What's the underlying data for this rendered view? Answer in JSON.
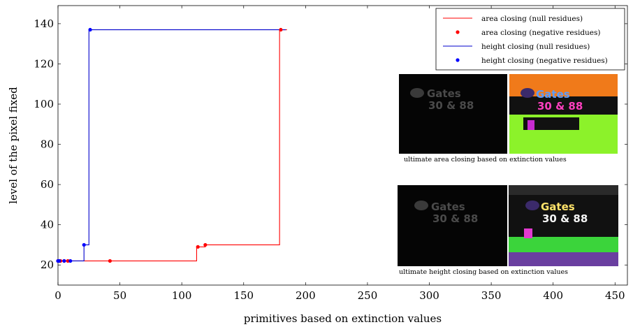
{
  "chart_data": {
    "type": "line",
    "xlabel": "primitives based on extinction values",
    "ylabel": "level of the pixel fixed",
    "xlim": [
      0,
      460
    ],
    "ylim": [
      10,
      149
    ],
    "xticks": [
      0,
      50,
      100,
      150,
      200,
      250,
      300,
      350,
      400,
      450
    ],
    "yticks": [
      20,
      40,
      60,
      80,
      100,
      120,
      140
    ],
    "grid": false,
    "legend_position": "top-right",
    "series": [
      {
        "name": "area closing (null residues)",
        "kind": "line",
        "color": "#ff0000",
        "x": [
          0,
          112,
          112,
          119,
          119,
          179,
          179,
          185
        ],
        "y": [
          22,
          22,
          29,
          29,
          30,
          30,
          137,
          137
        ]
      },
      {
        "name": "area closing (negative residues)",
        "kind": "scatter",
        "color": "#ff0000",
        "x": [
          0,
          1,
          2,
          5,
          8,
          42,
          113,
          119,
          180
        ],
        "y": [
          22,
          22,
          22,
          22,
          22,
          22,
          29,
          30,
          137
        ]
      },
      {
        "name": "height closing (null residues)",
        "kind": "line",
        "color": "#0000cc",
        "x": [
          0,
          21,
          21,
          25,
          25,
          184
        ],
        "y": [
          22,
          22,
          30,
          30,
          137,
          137
        ]
      },
      {
        "name": "height closing (negative residues)",
        "kind": "scatter",
        "color": "#0000ff",
        "x": [
          0,
          1,
          5,
          10,
          21,
          26
        ],
        "y": [
          22,
          22,
          22,
          22,
          30,
          137
        ]
      }
    ]
  },
  "insets": [
    {
      "caption": "ultimate area closing based on extinction values",
      "sign_line1": "Gates",
      "sign_line2": "30 & 88"
    },
    {
      "caption": "ultimate height closing based on extinction values",
      "sign_line1": "Gates",
      "sign_line2": "30 & 88"
    }
  ],
  "colors": {
    "dark_panel": "#050505",
    "orange": "#f07a1a",
    "green": "#8cf22a",
    "purple": "#6a3fa0"
  }
}
